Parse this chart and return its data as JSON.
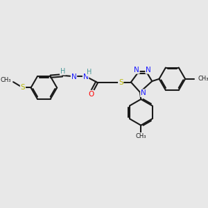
{
  "bg_color": "#e8e8e8",
  "bond_color": "#1a1a1a",
  "bond_width": 1.5,
  "atom_colors": {
    "N": "#1a1aff",
    "O": "#ff0000",
    "S_yellow": "#b8b800",
    "H_teal": "#4a9999",
    "C": "#1a1a1a"
  },
  "figsize": [
    3.0,
    3.0
  ],
  "dpi": 100,
  "xlim": [
    0,
    10
  ],
  "ylim": [
    0,
    10
  ]
}
